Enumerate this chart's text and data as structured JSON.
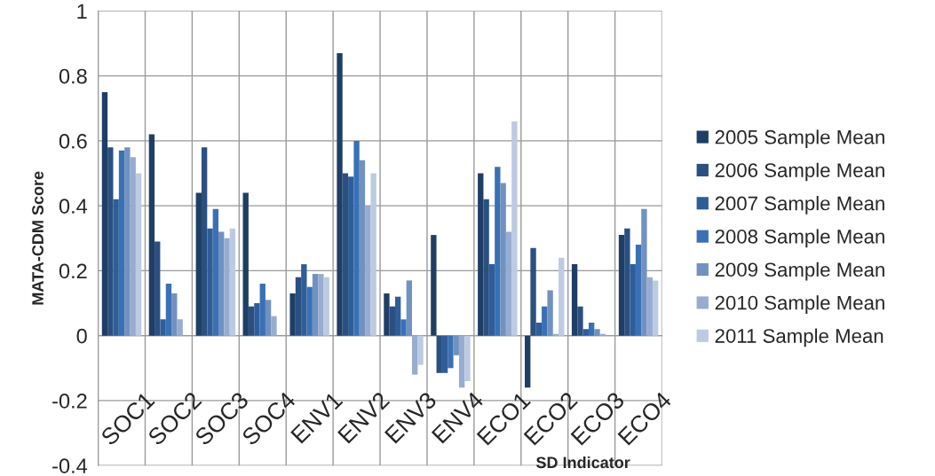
{
  "chart_data": {
    "type": "bar",
    "xlabel": "SD Indicator",
    "ylabel": "MATA-CDM Score",
    "categories": [
      "SOC1",
      "SOC2",
      "SOC3",
      "SOC4",
      "ENV1",
      "ENV2",
      "ENV3",
      "ENV4",
      "ECO1",
      "ECO2",
      "ECO3",
      "ECO4"
    ],
    "series": [
      {
        "name": "2005 Sample Mean",
        "color": "#1f3e66",
        "values": [
          0.75,
          0.62,
          0.44,
          0.44,
          0.13,
          0.87,
          0.13,
          0.31,
          0.5,
          -0.16,
          0.22,
          0.31
        ]
      },
      {
        "name": "2006 Sample Mean",
        "color": "#2a5080",
        "values": [
          0.58,
          0.29,
          0.58,
          0.09,
          0.18,
          0.5,
          0.09,
          -0.115,
          0.42,
          0.27,
          0.09,
          0.33
        ]
      },
      {
        "name": "2007 Sample Mean",
        "color": "#2f5d98",
        "values": [
          0.42,
          0.05,
          0.33,
          0.1,
          0.22,
          0.49,
          0.12,
          -0.115,
          0.22,
          0.04,
          0.02,
          0.22
        ]
      },
      {
        "name": "2008 Sample Mean",
        "color": "#3a70b4",
        "values": [
          0.57,
          0.16,
          0.39,
          0.16,
          0.15,
          0.6,
          0.05,
          -0.1,
          0.52,
          0.09,
          0.04,
          0.28
        ]
      },
      {
        "name": "2009 Sample Mean",
        "color": "#7191c0",
        "values": [
          0.58,
          0.13,
          0.32,
          0.11,
          0.19,
          0.54,
          0.17,
          -0.06,
          0.47,
          0.14,
          0.02,
          0.39
        ]
      },
      {
        "name": "2010 Sample Mean",
        "color": "#97acd0",
        "values": [
          0.55,
          0.05,
          0.3,
          0.06,
          0.19,
          0.4,
          -0.12,
          -0.16,
          0.32,
          0.005,
          0.005,
          0.18
        ]
      },
      {
        "name": "2011 Sample Mean",
        "color": "#bccbe2",
        "values": [
          0.5,
          null,
          0.33,
          null,
          0.18,
          0.5,
          -0.09,
          -0.14,
          0.66,
          0.24,
          null,
          0.17
        ]
      }
    ],
    "ylim": [
      -0.4,
      1
    ],
    "yticks": [
      -0.4,
      -0.2,
      0,
      0.2,
      0.4,
      0.6,
      0.8,
      1
    ],
    "grid": true,
    "legend": "right"
  }
}
